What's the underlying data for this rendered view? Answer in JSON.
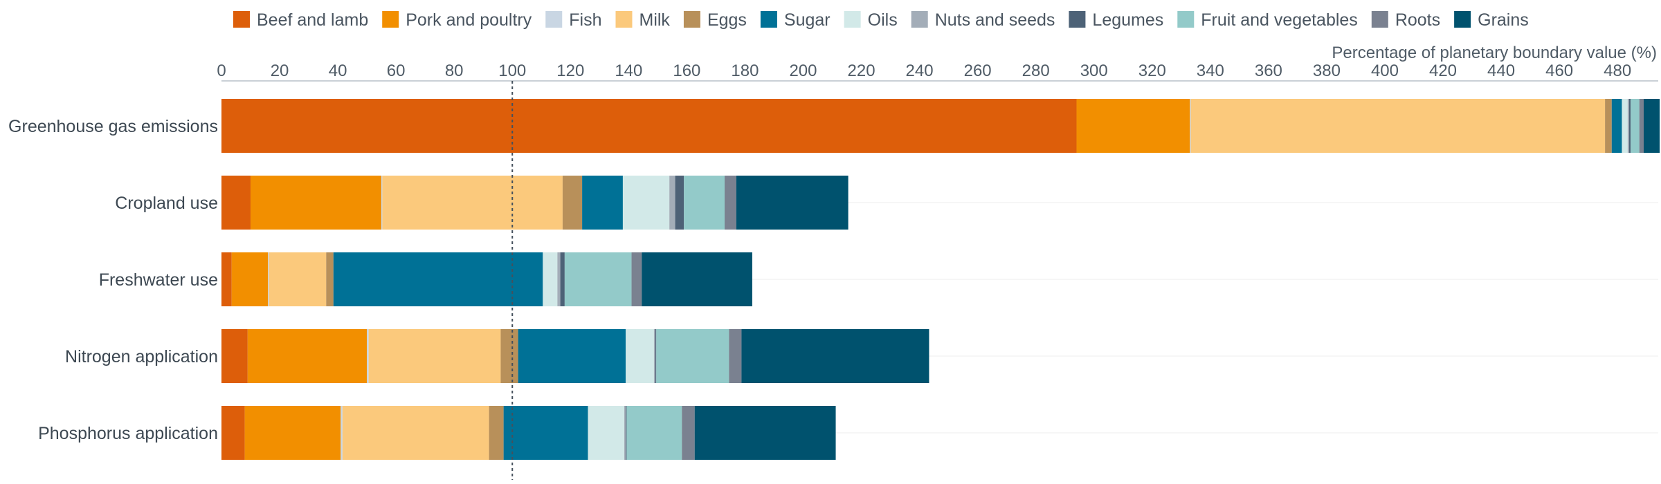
{
  "chart_data": {
    "type": "bar",
    "orientation": "horizontal",
    "stacked": true,
    "xlabel": "Percentage of planetary boundary value (%)",
    "xlim": [
      0,
      494
    ],
    "xticks": [
      0,
      20,
      40,
      60,
      80,
      100,
      120,
      140,
      160,
      180,
      200,
      220,
      240,
      260,
      280,
      300,
      320,
      340,
      360,
      380,
      400,
      420,
      440,
      460,
      480
    ],
    "reference_line": 100,
    "grid": true,
    "legend_position": "top",
    "categories": [
      "Greenhouse gas emissions",
      "Cropland use",
      "Freshwater use",
      "Nitrogen application",
      "Phosphorus application"
    ],
    "series": [
      {
        "name": "Beef and lamb",
        "color": "#dd5e0a",
        "values": [
          294,
          10,
          3.5,
          9,
          8
        ]
      },
      {
        "name": "Pork and poultry",
        "color": "#f28f00",
        "values": [
          39,
          45,
          12.5,
          41,
          33
        ]
      },
      {
        "name": "Fish",
        "color": "#c9d6e3",
        "values": [
          0.3,
          0.3,
          0.3,
          0.6,
          0.6
        ]
      },
      {
        "name": "Milk",
        "color": "#fbc97c",
        "values": [
          142.4,
          62,
          19.7,
          45.4,
          50.4
        ]
      },
      {
        "name": "Eggs",
        "color": "#b8905a",
        "values": [
          2.3,
          6.7,
          2.5,
          6,
          5
        ]
      },
      {
        "name": "Sugar",
        "color": "#007196",
        "values": [
          3.5,
          14,
          72,
          37,
          29
        ]
      },
      {
        "name": "Oils",
        "color": "#d2e9e8",
        "values": [
          2,
          16,
          5,
          9.7,
          12.5
        ]
      },
      {
        "name": "Nuts and seeds",
        "color": "#a3adb8",
        "values": [
          0.5,
          2,
          1,
          0.5,
          0.5
        ]
      },
      {
        "name": "Legumes",
        "color": "#4d6277",
        "values": [
          0.5,
          3,
          1.5,
          0.3,
          0.3
        ]
      },
      {
        "name": "Fruit and vegetables",
        "color": "#93cac9",
        "values": [
          3,
          14,
          23,
          25,
          19
        ]
      },
      {
        "name": "Roots",
        "color": "#7a8190",
        "values": [
          1.5,
          4,
          3.5,
          4.3,
          4.4
        ]
      },
      {
        "name": "Grains",
        "color": "#00526e",
        "values": [
          5.5,
          38.5,
          38,
          64.5,
          48.5
        ]
      }
    ]
  }
}
